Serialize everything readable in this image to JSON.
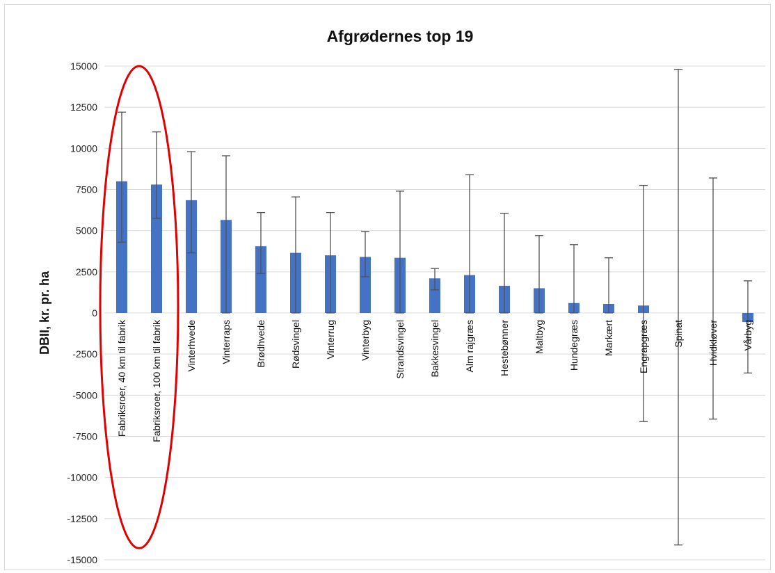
{
  "chart_data": {
    "type": "bar",
    "title": "Afgrødernes top 19",
    "ylabel": "DBII, kr. pr. ha",
    "xlabel": "",
    "ylim": [
      -15000,
      15000
    ],
    "yticks": [
      15000,
      12500,
      10000,
      7500,
      5000,
      2500,
      0,
      -2500,
      -5000,
      -7500,
      -10000,
      -12500,
      -15000
    ],
    "grid": true,
    "legend": "none",
    "categories": [
      "Fabriksroer, 40 km til fabrik",
      "Fabriksroer, 100 km til fabrik",
      "Vinterhvede",
      "Vinterraps",
      "Brødhvede",
      "Rødsvingel",
      "Vinterrug",
      "Vinterbyg",
      "Strandsvingel",
      "Bakkesvingel",
      "Alm rajgræs",
      "Hestebønner",
      "Maltbyg",
      "Hundegræs",
      "Markært",
      "Engrapgræs",
      "Spinat",
      "Hvidkløver",
      "Vårbyg"
    ],
    "series": [
      {
        "values": [
          8000,
          7800,
          6850,
          5650,
          4050,
          3650,
          3500,
          3400,
          3350,
          2100,
          2300,
          1650,
          1500,
          600,
          550,
          450,
          0,
          0,
          -550
        ],
        "error_low": [
          4300,
          5750,
          3650,
          0,
          2400,
          0,
          0,
          2200,
          0,
          1400,
          0,
          0,
          0,
          0,
          0,
          -6600,
          -14100,
          -6450,
          -3650
        ],
        "error_high": [
          12200,
          11000,
          9800,
          9550,
          6100,
          7050,
          6100,
          4950,
          7400,
          2700,
          8400,
          6050,
          4700,
          4150,
          3350,
          7750,
          14800,
          8200,
          1950
        ]
      }
    ],
    "annotations": [
      {
        "type": "ellipse",
        "target": [
          "Fabriksroer, 40 km til fabrik",
          "Fabriksroer, 100 km til fabrik"
        ],
        "color": "#e00000"
      }
    ],
    "colors": {
      "bar": "#4472c4",
      "errorbar": "#505050",
      "grid": "#d9d9d9",
      "annotation": "#e00000"
    }
  }
}
